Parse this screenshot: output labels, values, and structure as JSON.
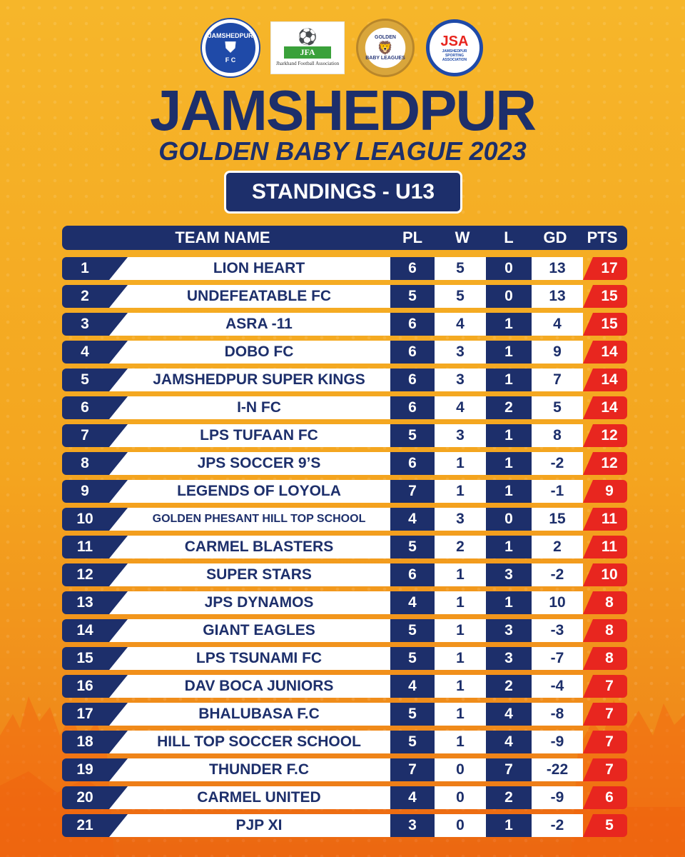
{
  "logos": {
    "jfc": {
      "name": "JAMSHEDPUR",
      "sub": "F C"
    },
    "jfa": {
      "abbr": "JFA",
      "name": "Jharkhand Football Association"
    },
    "gbl": {
      "top": "GOLDEN",
      "name": "BABY LEAGUES"
    },
    "jsa": {
      "abbr": "JSA",
      "name": "JAMSHEDPUR SPORTING ASSOCIATION"
    }
  },
  "title": {
    "main": "JAMSHEDPUR",
    "sub": "GOLDEN BABY LEAGUE 2023",
    "badge": "STANDINGS - U13"
  },
  "table": {
    "headers": {
      "team": "TEAM NAME",
      "pl": "PL",
      "w": "W",
      "l": "L",
      "gd": "GD",
      "pts": "PTS"
    },
    "rows": [
      {
        "rank": "1",
        "team": "LION HEART",
        "pl": "6",
        "w": "5",
        "l": "0",
        "gd": "13",
        "pts": "17"
      },
      {
        "rank": "2",
        "team": "UNDEFEATABLE FC",
        "pl": "5",
        "w": "5",
        "l": "0",
        "gd": "13",
        "pts": "15"
      },
      {
        "rank": "3",
        "team": "ASRA -11",
        "pl": "6",
        "w": "4",
        "l": "1",
        "gd": "4",
        "pts": "15"
      },
      {
        "rank": "4",
        "team": "DOBO FC",
        "pl": "6",
        "w": "3",
        "l": "1",
        "gd": "9",
        "pts": "14"
      },
      {
        "rank": "5",
        "team": "JAMSHEDPUR SUPER KINGS",
        "pl": "6",
        "w": "3",
        "l": "1",
        "gd": "7",
        "pts": "14"
      },
      {
        "rank": "6",
        "team": "I-N FC",
        "pl": "6",
        "w": "4",
        "l": "2",
        "gd": "5",
        "pts": "14"
      },
      {
        "rank": "7",
        "team": "LPS TUFAAN FC",
        "pl": "5",
        "w": "3",
        "l": "1",
        "gd": "8",
        "pts": "12"
      },
      {
        "rank": "8",
        "team": "JPS SOCCER 9’S",
        "pl": "6",
        "w": "1",
        "l": "1",
        "gd": "-2",
        "pts": "12"
      },
      {
        "rank": "9",
        "team": "LEGENDS OF LOYOLA",
        "pl": "7",
        "w": "1",
        "l": "1",
        "gd": "-1",
        "pts": "9"
      },
      {
        "rank": "10",
        "team": "GOLDEN PHESANT HILL TOP SCHOOL",
        "pl": "4",
        "w": "3",
        "l": "0",
        "gd": "15",
        "pts": "11"
      },
      {
        "rank": "11",
        "team": "CARMEL BLASTERS",
        "pl": "5",
        "w": "2",
        "l": "1",
        "gd": "2",
        "pts": "11"
      },
      {
        "rank": "12",
        "team": "SUPER STARS",
        "pl": "6",
        "w": "1",
        "l": "3",
        "gd": "-2",
        "pts": "10"
      },
      {
        "rank": "13",
        "team": "JPS DYNAMOS",
        "pl": "4",
        "w": "1",
        "l": "1",
        "gd": "10",
        "pts": "8"
      },
      {
        "rank": "14",
        "team": "GIANT EAGLES",
        "pl": "5",
        "w": "1",
        "l": "3",
        "gd": "-3",
        "pts": "8"
      },
      {
        "rank": "15",
        "team": "LPS TSUNAMI FC",
        "pl": "5",
        "w": "1",
        "l": "3",
        "gd": "-7",
        "pts": "8"
      },
      {
        "rank": "16",
        "team": "DAV BOCA JUNIORS",
        "pl": "4",
        "w": "1",
        "l": "2",
        "gd": "-4",
        "pts": "7"
      },
      {
        "rank": "17",
        "team": "BHALUBASA F.C",
        "pl": "5",
        "w": "1",
        "l": "4",
        "gd": "-8",
        "pts": "7"
      },
      {
        "rank": "18",
        "team": "HILL TOP SOCCER SCHOOL",
        "pl": "5",
        "w": "1",
        "l": "4",
        "gd": "-9",
        "pts": "7"
      },
      {
        "rank": "19",
        "team": "THUNDER F.C",
        "pl": "7",
        "w": "0",
        "l": "7",
        "gd": "-22",
        "pts": "7"
      },
      {
        "rank": "20",
        "team": "CARMEL UNITED",
        "pl": "4",
        "w": "0",
        "l": "2",
        "gd": "-9",
        "pts": "6"
      },
      {
        "rank": "21",
        "team": "PJP XI",
        "pl": "3",
        "w": "0",
        "l": "1",
        "gd": "-2",
        "pts": "5"
      }
    ]
  },
  "colors": {
    "navy": "#1d2f6b",
    "red": "#e8261f",
    "orange": "#f4a51f"
  }
}
